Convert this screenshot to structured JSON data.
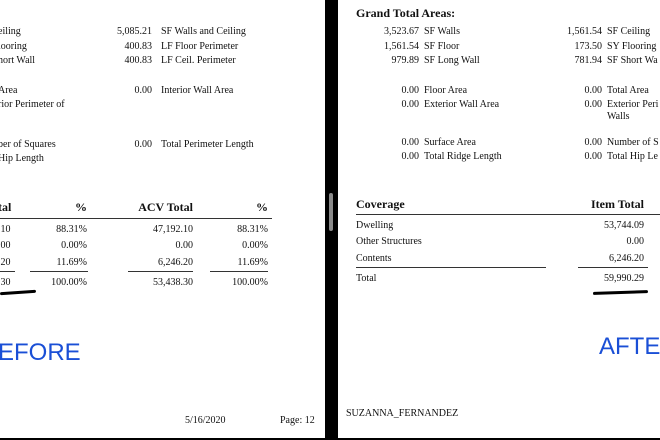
{
  "before": {
    "areas": {
      "c1": [
        {
          "value": "",
          "label": "eiling"
        },
        {
          "value": "",
          "label": "looring"
        },
        {
          "value": "",
          "label": "hort Wall"
        },
        {
          "value": "",
          "label": "Area"
        },
        {
          "value": "",
          "label": "rior Perimeter of"
        },
        {
          "value": "",
          "label": "ber of Squares"
        },
        {
          "value": "",
          "label": "Hip Length"
        }
      ],
      "c2": [
        {
          "value": "5,085.21",
          "label": "SF Walls and Ceiling"
        },
        {
          "value": "400.83",
          "label": "LF Floor Perimeter"
        },
        {
          "value": "400.83",
          "label": "LF Ceil. Perimeter"
        },
        {
          "value": "0.00",
          "label": "Interior Wall Area"
        },
        {
          "value": "0.00",
          "label": "Total Perimeter Length"
        }
      ]
    },
    "table": {
      "headers": [
        "tal",
        "%",
        "ACV Total",
        "%"
      ],
      "rows": [
        [
          ".10",
          "88.31%",
          "47,192.10",
          "88.31%"
        ],
        [
          ".00",
          "0.00%",
          "0.00",
          "0.00%"
        ],
        [
          ".20",
          "11.69%",
          "6,246.20",
          "11.69%"
        ],
        [
          ".30",
          "100.00%",
          "53,438.30",
          "100.00%"
        ]
      ]
    },
    "label": "EFORE",
    "footer": {
      "date": "5/16/2020",
      "page": "Page: 12"
    }
  },
  "after": {
    "section_title": "Grand Total Areas:",
    "areas": {
      "c1": [
        {
          "value": "3,523.67",
          "label": "SF Walls"
        },
        {
          "value": "1,561.54",
          "label": "SF Floor"
        },
        {
          "value": "979.89",
          "label": "SF Long Wall"
        },
        {
          "value": "0.00",
          "label": "Floor Area"
        },
        {
          "value": "0.00",
          "label": "Exterior Wall Area"
        },
        {
          "value": "0.00",
          "label": "Surface Area"
        },
        {
          "value": "0.00",
          "label": "Total Ridge Length"
        }
      ],
      "c2": [
        {
          "value": "1,561.54",
          "label": "SF Ceiling"
        },
        {
          "value": "173.50",
          "label": "SY Flooring"
        },
        {
          "value": "781.94",
          "label": "SF Short Wa"
        },
        {
          "value": "0.00",
          "label": "Total Area"
        },
        {
          "value": "0.00",
          "label": "Exterior Peri"
        },
        {
          "value": "",
          "label": "Walls"
        },
        {
          "value": "0.00",
          "label": "Number of S"
        },
        {
          "value": "0.00",
          "label": "Total Hip Le"
        }
      ]
    },
    "table": {
      "headers": [
        "Coverage",
        "Item Total"
      ],
      "rows": [
        [
          "Dwelling",
          "53,744.09"
        ],
        [
          "Other Structures",
          "0.00"
        ],
        [
          "Contents",
          "6,246.20"
        ],
        [
          "Total",
          "59,990.29"
        ]
      ]
    },
    "label": "AFTE",
    "footer": {
      "name": "SUZANNA_FERNANDEZ"
    }
  }
}
